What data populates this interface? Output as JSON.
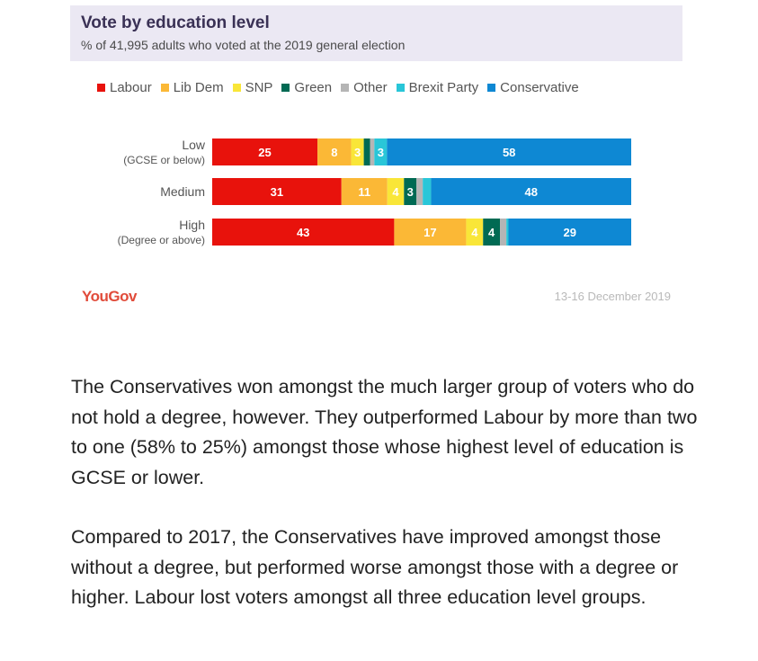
{
  "chart_data": {
    "type": "bar",
    "orientation": "horizontal",
    "stacked": true,
    "title": "Vote by education level",
    "subtitle": "% of 41,995 adults who voted at the 2019 general election",
    "categories": [
      {
        "label": "Low",
        "sublabel": "(GCSE or below)"
      },
      {
        "label": "Medium",
        "sublabel": ""
      },
      {
        "label": "High",
        "sublabel": "(Degree or above)"
      }
    ],
    "series": [
      {
        "name": "Labour",
        "color": "#e8120c",
        "values": [
          25,
          31,
          43
        ],
        "labels": [
          "25",
          "31",
          "43"
        ]
      },
      {
        "name": "Lib Dem",
        "color": "#fbb836",
        "values": [
          8,
          11,
          17
        ],
        "labels": [
          "8",
          "11",
          "17"
        ]
      },
      {
        "name": "SNP",
        "color": "#f9e638",
        "values": [
          3,
          4,
          4
        ],
        "labels": [
          "3",
          "4",
          "4"
        ]
      },
      {
        "name": "Green",
        "color": "#006a53",
        "values": [
          1.5,
          3,
          4
        ],
        "labels": [
          "",
          "3",
          "4"
        ]
      },
      {
        "name": "Other",
        "color": "#b5b5b5",
        "values": [
          1,
          1.5,
          1.5
        ],
        "labels": [
          "",
          "",
          ""
        ]
      },
      {
        "name": "Brexit Party",
        "color": "#29c6d8",
        "values": [
          3,
          2,
          0.5
        ],
        "labels": [
          "3",
          "",
          ""
        ]
      },
      {
        "name": "Conservative",
        "color": "#0e88d3",
        "values": [
          58,
          48,
          29
        ],
        "labels": [
          "58",
          "48",
          "29"
        ]
      }
    ],
    "xlim": [
      0,
      100
    ],
    "grid": false,
    "legend_position": "top"
  },
  "footer": {
    "brand": "YouGov",
    "date": "13-16 December 2019"
  },
  "article": {
    "paragraphs": [
      "The Conservatives won amongst the much larger group of voters who do not hold a degree, however. They outperformed Labour by more than two to one (58% to 25%) amongst those whose highest level of education is GCSE or lower.",
      "Compared to 2017, the Conservatives have improved amongst those without a degree, but performed worse amongst those with a degree or higher. Labour lost voters amongst all three education level groups."
    ]
  }
}
